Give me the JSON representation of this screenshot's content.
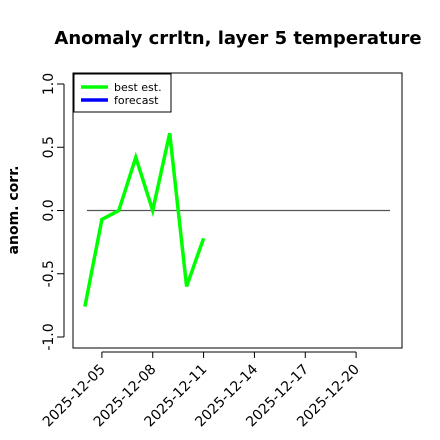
{
  "chart_data": {
    "type": "line",
    "title": "Anomaly crrltn, layer 5 temperature",
    "xlabel": "",
    "ylabel": "anom. corr.",
    "ylim": [
      -1.0,
      1.0
    ],
    "yticks": [
      -1.0,
      -0.5,
      0.0,
      0.5,
      1.0
    ],
    "ytick_labels": [
      "-1.0",
      "-0.5",
      "0.0",
      "0.5",
      "1.0"
    ],
    "xlim": [
      "2025-12-03",
      "2025-12-22"
    ],
    "xticks": [
      "2025-12-05",
      "2025-12-08",
      "2025-12-11",
      "2025-12-14",
      "2025-12-17",
      "2025-12-20"
    ],
    "xtick_colors": [
      "#000000",
      "#000000",
      "#228b22",
      "#000000",
      "#000000",
      "#000000"
    ],
    "reference_line": 0.0,
    "grid": false,
    "legend_position": "top-left",
    "series": [
      {
        "name": "best est.",
        "color": "#00ff00",
        "x": [
          "2025-12-04",
          "2025-12-05",
          "2025-12-06",
          "2025-12-07",
          "2025-12-08",
          "2025-12-09",
          "2025-12-10",
          "2025-12-11"
        ],
        "values": [
          -0.76,
          -0.07,
          0.0,
          0.42,
          0.0,
          0.61,
          -0.6,
          -0.22
        ]
      },
      {
        "name": "forecast",
        "color": "#0000ff",
        "x": [],
        "values": []
      }
    ]
  }
}
